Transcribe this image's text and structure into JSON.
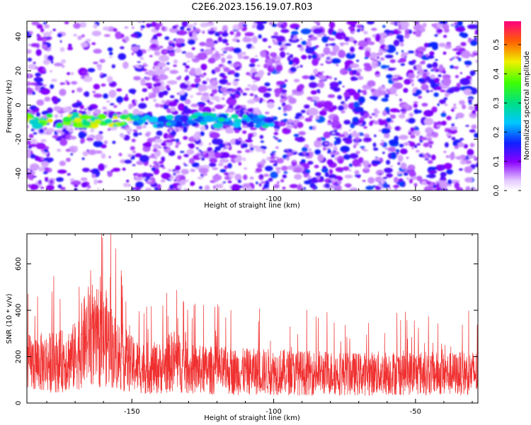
{
  "title": "C2E6.2023.156.19.07.R03",
  "chart_data": [
    {
      "type": "heatmap",
      "xlabel": "Height of straight line (km)",
      "ylabel": "Frequency (Hz)",
      "xlim": [
        -187,
        -28
      ],
      "ylim": [
        -50,
        49
      ],
      "xticks": [
        -150,
        -100,
        -50
      ],
      "xticklabels": [
        "-150",
        "-100",
        "-50"
      ],
      "yticks": [
        -40,
        -20,
        0,
        20,
        40
      ],
      "yticklabels": [
        "-40",
        "-20",
        "0",
        "20",
        "40"
      ],
      "colorbar": {
        "label": "Normalized spectral amplitude",
        "range": [
          0,
          0.58
        ],
        "ticks": [
          0,
          0.1,
          0.2,
          0.3,
          0.4,
          0.5
        ],
        "ticklabels": [
          "0.0",
          "0.1",
          "0.2",
          "0.3",
          "0.4",
          "0.5"
        ]
      },
      "features": [
        {
          "x": [
            -187,
            -100
          ],
          "y": -9,
          "amplitude": 0.45,
          "note": "strong band near -9 Hz"
        }
      ]
    },
    {
      "type": "line",
      "xlabel": "Height of straight line (km)",
      "ylabel": "SNR (10 * v/v)",
      "xlim": [
        -187,
        -28
      ],
      "ylim": [
        0,
        730
      ],
      "xticks": [
        -150,
        -100,
        -50
      ],
      "xticklabels": [
        "-150",
        "-100",
        "-50"
      ],
      "yticks": [
        0,
        200,
        400,
        600
      ],
      "yticklabels": [
        "0",
        "200",
        "400",
        "600"
      ],
      "series": [
        {
          "color": "#f03030",
          "x": [
            -187,
            -180,
            -175,
            -170,
            -167,
            -165,
            -162,
            -159,
            -156,
            -150,
            -145,
            -140,
            -135,
            -130,
            -120,
            -110,
            -100,
            -90,
            -80,
            -70,
            -60,
            -50,
            -40,
            -28
          ],
          "values": [
            170,
            175,
            180,
            200,
            260,
            300,
            240,
            280,
            220,
            165,
            150,
            150,
            185,
            145,
            140,
            135,
            135,
            130,
            130,
            125,
            130,
            130,
            125,
            130
          ]
        }
      ]
    }
  ]
}
